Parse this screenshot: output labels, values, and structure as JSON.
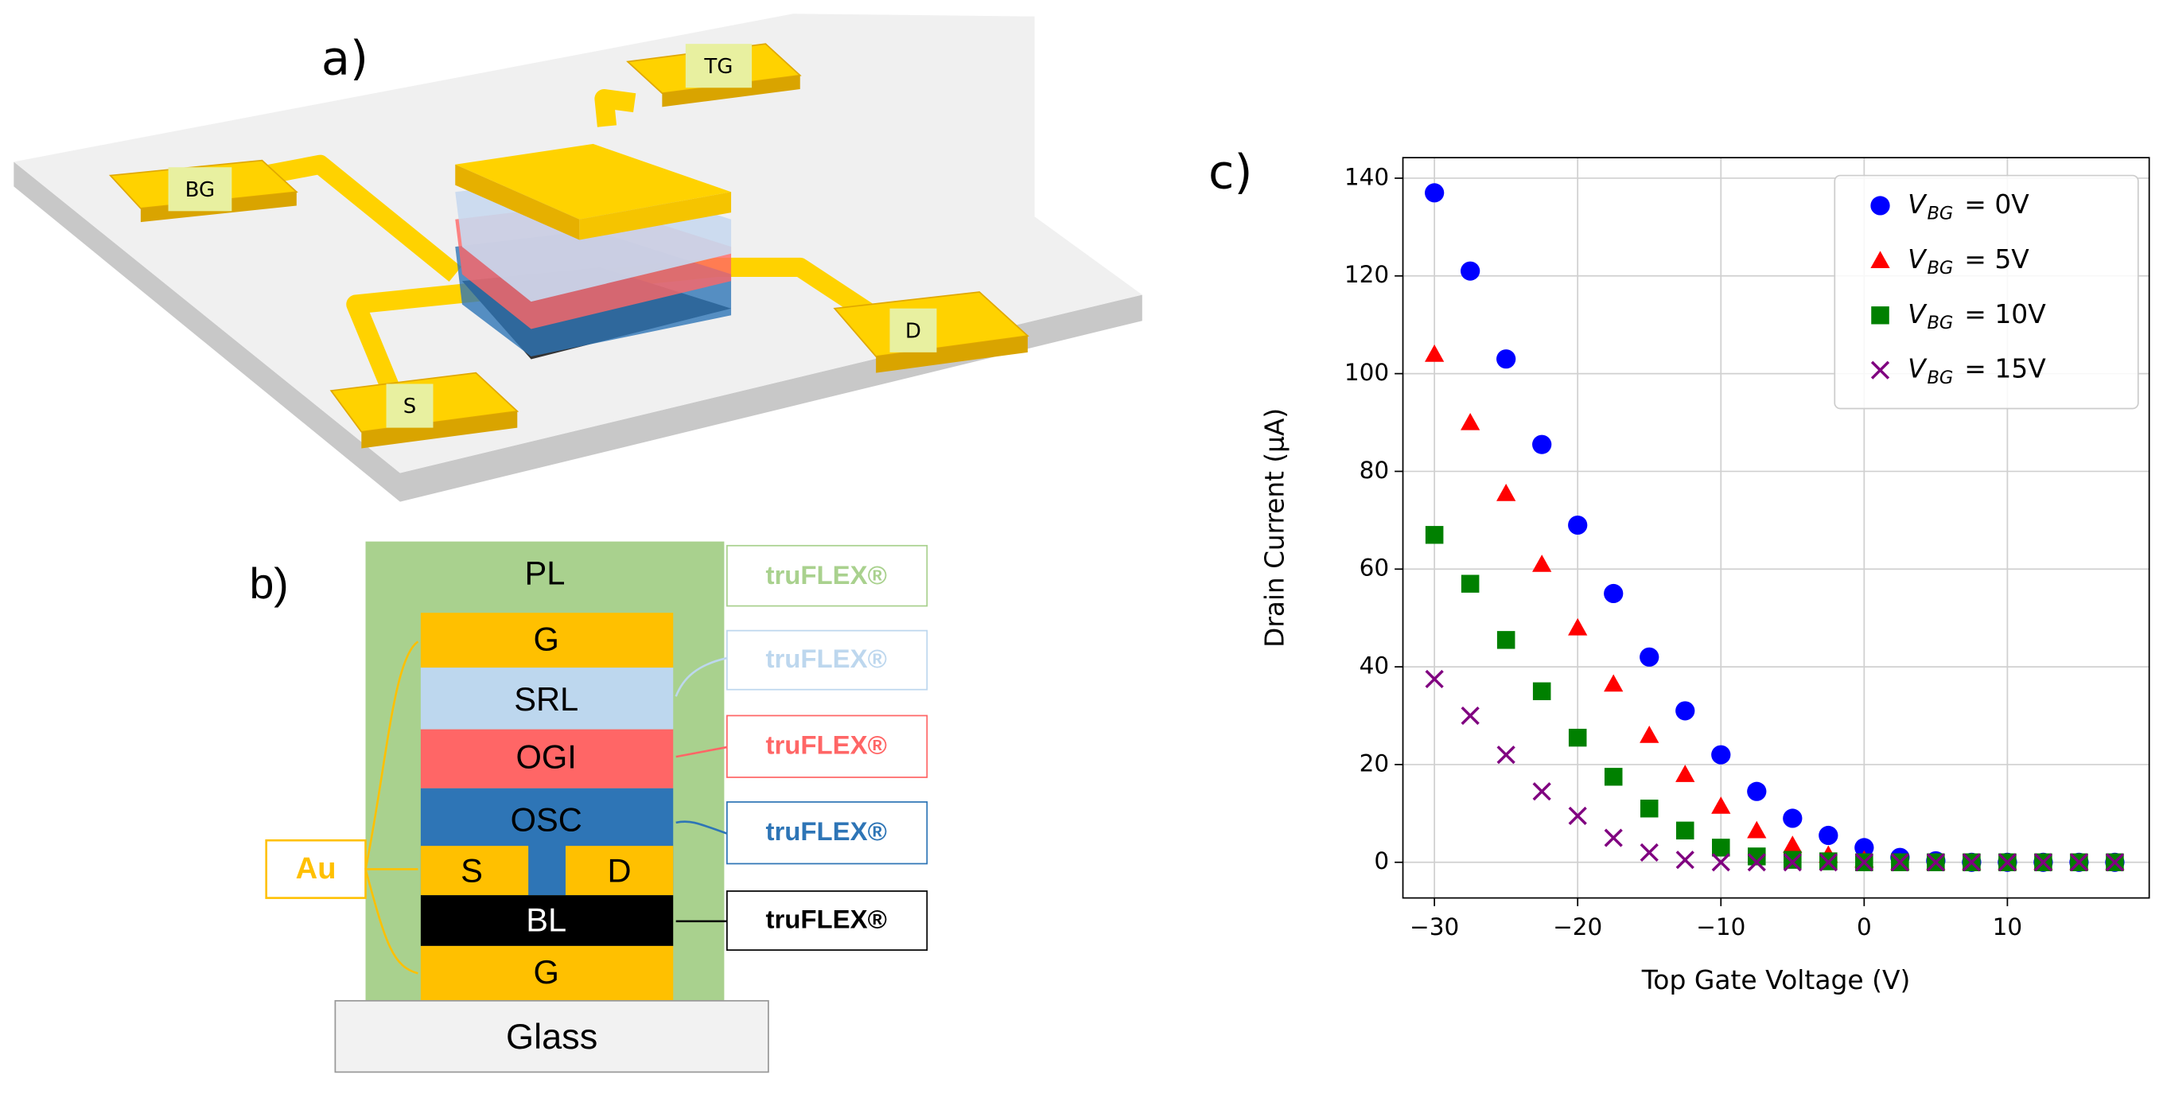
{
  "panel_a": {
    "label": "a)",
    "pads": [
      "BG",
      "TG",
      "S",
      "D"
    ]
  },
  "panel_b": {
    "label": "b)",
    "top": "PL",
    "layers": [
      "G",
      "SRL",
      "OGI",
      "OSC",
      "S",
      "D",
      "BL",
      "G"
    ],
    "substrate": "Glass",
    "electrode": "Au",
    "materials": [
      "truFLEX®",
      "truFLEX®",
      "truFLEX®",
      "truFLEX®",
      "truFLEX®"
    ]
  },
  "panel_c": {
    "label": "c)"
  },
  "chart_data": {
    "type": "scatter",
    "x_label": "Top Gate Voltage (V)",
    "y_label": "Drain Current (μA)",
    "legend_symbol": {
      "main": "V",
      "sub": "BG"
    },
    "x": [
      -30,
      -27.5,
      -25,
      -22.5,
      -20,
      -17.5,
      -15,
      -12.5,
      -10,
      -7.5,
      -5,
      -2.5,
      0,
      2.5,
      5,
      7.5,
      10,
      12.5,
      15,
      17.5
    ],
    "series": [
      {
        "name": "= 0V",
        "color": "#0000ff",
        "marker": "circle",
        "values": [
          137,
          121,
          103,
          85.5,
          69,
          55,
          42,
          31,
          22,
          14.5,
          9,
          5.5,
          3,
          1,
          0.3,
          0,
          0,
          0,
          0,
          0
        ]
      },
      {
        "name": "= 5V",
        "color": "#ff0000",
        "marker": "triangle",
        "values": [
          104,
          90,
          75.5,
          61,
          48,
          36.5,
          26,
          18,
          11.5,
          6.5,
          3.5,
          1.5,
          0.5,
          0,
          0,
          0,
          0,
          0,
          0,
          0
        ]
      },
      {
        "name": "= 10V",
        "color": "#008000",
        "marker": "square",
        "values": [
          67,
          57,
          45.5,
          35,
          25.5,
          17.5,
          11,
          6.5,
          3,
          1.2,
          0.5,
          0.2,
          0,
          0,
          0,
          0,
          0,
          0,
          0,
          0
        ]
      },
      {
        "name": "= 15V",
        "color": "#800080",
        "marker": "x",
        "values": [
          37.5,
          30,
          22,
          14.5,
          9.5,
          5,
          2,
          0.5,
          0,
          0,
          0,
          0,
          0,
          0,
          0,
          0,
          0,
          0,
          0,
          0
        ]
      }
    ],
    "xlim": [
      -32.2,
      19.9
    ],
    "ylim": [
      -7.3,
      144.2
    ],
    "xticks": [
      {
        "value": -30,
        "label": "−30"
      },
      {
        "value": -20,
        "label": "−20"
      },
      {
        "value": -10,
        "label": "−10"
      },
      0,
      10
    ],
    "yticks": [
      0,
      20,
      40,
      60,
      80,
      100,
      120,
      140
    ],
    "grid": true,
    "legend": "upper right"
  }
}
